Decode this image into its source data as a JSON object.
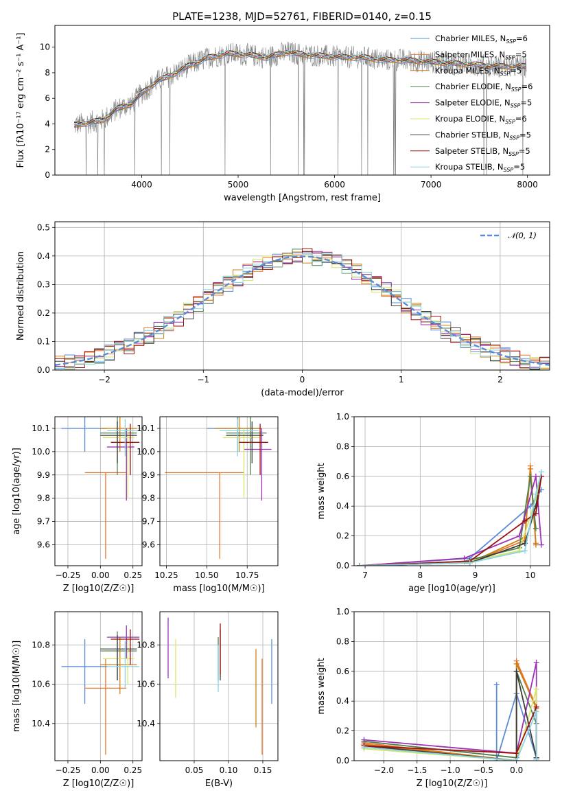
{
  "title": "PLATE=1238, MJD=52761, FIBERID=0140, z=0.15",
  "colors": [
    "#5b8bd6",
    "#e8762b",
    "#cd7f17",
    "#4f7f4f",
    "#9b32b5",
    "#d8e468",
    "#3a3a3a",
    "#9e1111",
    "#88d4e4"
  ],
  "chart_data": [
    {
      "id": "spectrum",
      "type": "line",
      "xlabel": "wavelength [Angstrom, rest frame]",
      "ylabel": "Flux [fλ10⁻¹⁷ erg cm⁻² s⁻¹ A⁻¹]",
      "xlim": [
        3100,
        8230
      ],
      "ylim": [
        0,
        11.7
      ],
      "xticks": [
        4000,
        5000,
        6000,
        7000,
        8000
      ],
      "yticks": [
        0,
        2,
        4,
        6,
        8,
        10
      ],
      "grid": false,
      "legend": "right",
      "x": [
        3300,
        3450,
        3600,
        3750,
        3900,
        4000,
        4150,
        4300,
        4500,
        4700,
        4900,
        5100,
        5300,
        5500,
        5700,
        5900,
        6100,
        6300,
        6500,
        6700,
        6900,
        7100,
        7300,
        7500,
        7700,
        7900
      ],
      "y": [
        3.9,
        4.1,
        4.3,
        5.2,
        5.6,
        6.4,
        7.3,
        7.8,
        8.6,
        9.2,
        9.5,
        9.4,
        9.2,
        9.6,
        9.4,
        9.3,
        9.2,
        9.2,
        9.0,
        9.0,
        8.9,
        8.8,
        8.7,
        8.6,
        8.5,
        8.5
      ],
      "series": [
        {
          "name": "Chabrier MILES, N_SSP=6"
        },
        {
          "name": "Salpeter MILES, N_SSP=5"
        },
        {
          "name": "Kroupa MILES, N_SSP=5"
        },
        {
          "name": "Chabrier ELODIE, N_SSP=6"
        },
        {
          "name": "Salpeter ELODIE, N_SSP=5"
        },
        {
          "name": "Kroupa ELODIE, N_SSP=6"
        },
        {
          "name": "Chabrier STELIB, N_SSP=5"
        },
        {
          "name": "Salpeter STELIB, N_SSP=5"
        },
        {
          "name": "Kroupa STELIB, N_SSP=5"
        }
      ]
    },
    {
      "id": "residuals",
      "type": "line",
      "xlabel": "(data-model)/error",
      "ylabel": "Normed distribution",
      "xlim": [
        -2.5,
        2.5
      ],
      "ylim": [
        0,
        0.52
      ],
      "xticks": [
        -2,
        -1,
        0,
        1,
        2
      ],
      "yticks": [
        0.0,
        0.1,
        0.2,
        0.3,
        0.4,
        0.5
      ],
      "grid": true,
      "legend": "top-right",
      "legend_label": "𝒩(0, 1)"
    },
    {
      "id": "z_age",
      "type": "scatter",
      "xlabel": "Z [log10(Z/Z☉)]",
      "ylabel": "age  [log10(age/yr)]",
      "xlim": [
        -0.35,
        0.32
      ],
      "ylim": [
        9.51,
        10.15
      ],
      "xticks": [
        -0.25,
        0.0,
        0.25
      ],
      "yticks": [
        9.6,
        9.7,
        9.8,
        9.9,
        10.0,
        10.1
      ],
      "grid": true,
      "points": [
        {
          "x": -0.12,
          "y": 10.1,
          "xl": -0.3,
          "xh": 0.05,
          "yl": 10.0,
          "yh": 10.17
        },
        {
          "x": 0.04,
          "y": 9.91,
          "xl": -0.12,
          "xh": 0.2,
          "yl": 9.54,
          "yh": 9.91
        },
        {
          "x": 0.15,
          "y": 10.1,
          "xl": 0.0,
          "xh": 0.28,
          "yl": 10.0,
          "yh": 10.17
        },
        {
          "x": 0.13,
          "y": 10.08,
          "xl": 0.0,
          "xh": 0.28,
          "yl": 9.9,
          "yh": 10.15
        },
        {
          "x": 0.2,
          "y": 10.02,
          "xl": 0.05,
          "xh": 0.26,
          "yl": 9.79,
          "yh": 10.1
        },
        {
          "x": 0.21,
          "y": 10.06,
          "xl": 0.02,
          "xh": 0.26,
          "yl": 9.8,
          "yh": 10.1
        },
        {
          "x": 0.13,
          "y": 10.07,
          "xl": 0.0,
          "xh": 0.28,
          "yl": 9.95,
          "yh": 10.13
        },
        {
          "x": 0.23,
          "y": 10.04,
          "xl": 0.08,
          "xh": 0.3,
          "yl": 9.9,
          "yh": 10.12
        },
        {
          "x": 0.19,
          "y": 10.09,
          "xl": 0.05,
          "xh": 0.3,
          "yl": 9.98,
          "yh": 10.14
        }
      ]
    },
    {
      "id": "mass_age",
      "type": "scatter",
      "xlabel": "mass [log10(M/M☉)]",
      "ylabel": "",
      "xlim": [
        10.21,
        10.94
      ],
      "ylim": [
        9.51,
        10.15
      ],
      "xticks": [
        10.25,
        10.5,
        10.75
      ],
      "yticks": [
        9.6,
        9.7,
        9.8,
        9.9,
        10.0,
        10.1
      ],
      "grid": true,
      "points": [
        {
          "x": 10.69,
          "y": 10.1,
          "xl": 10.5,
          "xh": 10.83,
          "yl": 10.0,
          "yh": 10.17
        },
        {
          "x": 10.58,
          "y": 9.91,
          "xl": 10.24,
          "xh": 10.73,
          "yl": 9.54,
          "yh": 9.91
        },
        {
          "x": 10.7,
          "y": 10.1,
          "xl": 10.55,
          "xh": 10.84,
          "yl": 10.0,
          "yh": 10.17
        },
        {
          "x": 10.77,
          "y": 10.08,
          "xl": 10.62,
          "xh": 10.87,
          "yl": 9.9,
          "yh": 10.15
        },
        {
          "x": 10.84,
          "y": 10.01,
          "xl": 10.73,
          "xh": 10.9,
          "yl": 9.79,
          "yh": 10.1
        },
        {
          "x": 10.73,
          "y": 10.06,
          "xl": 10.6,
          "xh": 10.83,
          "yl": 9.8,
          "yh": 10.1
        },
        {
          "x": 10.78,
          "y": 10.07,
          "xl": 10.62,
          "xh": 10.85,
          "yl": 9.95,
          "yh": 10.13
        },
        {
          "x": 10.83,
          "y": 10.04,
          "xl": 10.7,
          "xh": 10.88,
          "yl": 9.9,
          "yh": 10.12
        },
        {
          "x": 10.69,
          "y": 10.09,
          "xl": 10.58,
          "xh": 10.82,
          "yl": 9.98,
          "yh": 10.14
        }
      ]
    },
    {
      "id": "age_weight",
      "type": "line",
      "xlabel": "age  [log10(age/yr)]",
      "ylabel": "mass weight",
      "xlim": [
        6.8,
        10.35
      ],
      "ylim": [
        0,
        1.0
      ],
      "xticks": [
        7,
        8,
        9,
        10
      ],
      "yticks": [
        0.0,
        0.2,
        0.4,
        0.6,
        0.8,
        1.0
      ],
      "grid": true,
      "series": [
        {
          "x": [
            6.9,
            8.9,
            10.0,
            10.2
          ],
          "y": [
            0.0,
            0.05,
            0.4,
            0.51
          ]
        },
        {
          "x": [
            6.9,
            8.9,
            9.9,
            10.0,
            10.1
          ],
          "y": [
            0.0,
            0.02,
            0.17,
            0.67,
            0.15
          ]
        },
        {
          "x": [
            6.9,
            8.9,
            9.9,
            10.0,
            10.1
          ],
          "y": [
            0.0,
            0.02,
            0.19,
            0.65,
            0.14
          ]
        },
        {
          "x": [
            6.9,
            8.8,
            9.8,
            10.0,
            10.1
          ],
          "y": [
            0.0,
            0.03,
            0.12,
            0.6,
            0.25
          ]
        },
        {
          "x": [
            6.9,
            8.8,
            9.8,
            10.1,
            10.2
          ],
          "y": [
            0.0,
            0.05,
            0.2,
            0.6,
            0.14
          ]
        },
        {
          "x": [
            6.9,
            8.9,
            9.8,
            10.1,
            10.2
          ],
          "y": [
            0.0,
            0.03,
            0.1,
            0.45,
            0.6
          ]
        },
        {
          "x": [
            6.9,
            8.9,
            9.9,
            10.1,
            10.2
          ],
          "y": [
            0.0,
            0.02,
            0.15,
            0.4,
            0.6
          ]
        },
        {
          "x": [
            6.9,
            8.9,
            9.9,
            10.1,
            10.2
          ],
          "y": [
            0.0,
            0.03,
            0.3,
            0.35,
            0.6
          ]
        },
        {
          "x": [
            6.9,
            8.9,
            9.9,
            10.1,
            10.2
          ],
          "y": [
            0.0,
            0.02,
            0.1,
            0.48,
            0.63
          ]
        }
      ]
    },
    {
      "id": "z_mass",
      "type": "scatter",
      "xlabel": "Z [log10(Z/Z☉)]",
      "ylabel": "mass [log10(M/M☉)]",
      "xlim": [
        -0.35,
        0.32
      ],
      "ylim": [
        10.21,
        10.97
      ],
      "xticks": [
        -0.25,
        0.0,
        0.25
      ],
      "yticks": [
        10.4,
        10.6,
        10.8
      ],
      "grid": true,
      "points": [
        {
          "x": -0.12,
          "y": 10.69,
          "xl": -0.3,
          "xh": 0.05,
          "yl": 10.5,
          "yh": 10.83
        },
        {
          "x": 0.04,
          "y": 10.58,
          "xl": -0.12,
          "xh": 0.2,
          "yl": 10.24,
          "yh": 10.73
        },
        {
          "x": 0.15,
          "y": 10.7,
          "xl": 0.0,
          "xh": 0.28,
          "yl": 10.55,
          "yh": 10.84
        },
        {
          "x": 0.13,
          "y": 10.77,
          "xl": 0.0,
          "xh": 0.28,
          "yl": 10.62,
          "yh": 10.87
        },
        {
          "x": 0.2,
          "y": 10.84,
          "xl": 0.05,
          "xh": 0.3,
          "yl": 10.73,
          "yh": 10.9
        },
        {
          "x": 0.21,
          "y": 10.73,
          "xl": 0.02,
          "xh": 0.26,
          "yl": 10.6,
          "yh": 10.83
        },
        {
          "x": 0.13,
          "y": 10.78,
          "xl": 0.0,
          "xh": 0.28,
          "yl": 10.62,
          "yh": 10.85
        },
        {
          "x": 0.23,
          "y": 10.83,
          "xl": 0.08,
          "xh": 0.3,
          "yl": 10.7,
          "yh": 10.88
        },
        {
          "x": 0.19,
          "y": 10.69,
          "xl": 0.05,
          "xh": 0.3,
          "yl": 10.58,
          "yh": 10.82
        }
      ]
    },
    {
      "id": "ebv_mass",
      "type": "scatter",
      "xlabel": "E(B-V)",
      "ylabel": "",
      "xlim": [
        0.0,
        0.172
      ],
      "ylim": [
        10.21,
        10.97
      ],
      "xticks": [
        0.05,
        0.1,
        0.15
      ],
      "yticks": [
        10.4,
        10.6,
        10.8
      ],
      "grid": true,
      "points": [
        {
          "x": 0.163,
          "y": 10.69,
          "yl": 10.5,
          "yh": 10.83
        },
        {
          "x": 0.149,
          "y": 10.58,
          "yl": 10.24,
          "yh": 10.73
        },
        {
          "x": 0.14,
          "y": 10.62,
          "yl": 10.38,
          "yh": 10.78
        },
        {
          "x": 0.085,
          "y": 10.77,
          "yl": 10.62,
          "yh": 10.84
        },
        {
          "x": 0.012,
          "y": 10.82,
          "yl": 10.63,
          "yh": 10.94
        },
        {
          "x": 0.023,
          "y": 10.72,
          "yl": 10.53,
          "yh": 10.83
        },
        {
          "x": 0.088,
          "y": 10.78,
          "yl": 10.62,
          "yh": 10.88
        },
        {
          "x": 0.088,
          "y": 10.83,
          "yl": 10.65,
          "yh": 10.91
        },
        {
          "x": 0.085,
          "y": 10.7,
          "yl": 10.56,
          "yh": 10.8
        }
      ]
    },
    {
      "id": "z_weight",
      "type": "line",
      "xlabel": "Z [log10(Z/Z☉)]",
      "ylabel": "mass weight",
      "xlim": [
        -2.45,
        0.5
      ],
      "ylim": [
        0,
        1.0
      ],
      "xticks": [
        -2.0,
        -1.5,
        -1.0,
        -0.5,
        0.0
      ],
      "yticks": [
        0.0,
        0.2,
        0.4,
        0.6,
        0.8,
        1.0
      ],
      "grid": true,
      "series": [
        {
          "x": [
            -0.3,
            -0.3,
            0.0,
            0.3,
            0.3
          ],
          "y": [
            0.51,
            0.0,
            0.45,
            0.02,
            0.02
          ]
        },
        {
          "x": [
            -2.3,
            0.0,
            0.0,
            0.3
          ],
          "y": [
            0.12,
            0.0,
            0.67,
            0.36
          ]
        },
        {
          "x": [
            -2.3,
            0.0,
            0.0,
            0.3
          ],
          "y": [
            0.11,
            0.0,
            0.65,
            0.35
          ]
        },
        {
          "x": [
            -2.3,
            0.0,
            0.0,
            0.3
          ],
          "y": [
            0.13,
            0.02,
            0.6,
            0.25
          ]
        },
        {
          "x": [
            -2.3,
            0.0,
            0.3,
            0.3
          ],
          "y": [
            0.14,
            0.05,
            0.66,
            0.02
          ]
        },
        {
          "x": [
            -2.3,
            0.0,
            0.3,
            0.3
          ],
          "y": [
            0.08,
            0.0,
            0.48,
            0.02
          ]
        },
        {
          "x": [
            -2.3,
            0.0,
            0.0,
            0.3
          ],
          "y": [
            0.1,
            0.0,
            0.6,
            0.02
          ]
        },
        {
          "x": [
            -2.3,
            0.0,
            0.3,
            0.3
          ],
          "y": [
            0.1,
            0.05,
            0.36,
            0.01
          ]
        },
        {
          "x": [
            -2.3,
            0.0,
            0.3,
            0.3
          ],
          "y": [
            0.09,
            0.0,
            0.33,
            0.01
          ]
        }
      ]
    }
  ]
}
